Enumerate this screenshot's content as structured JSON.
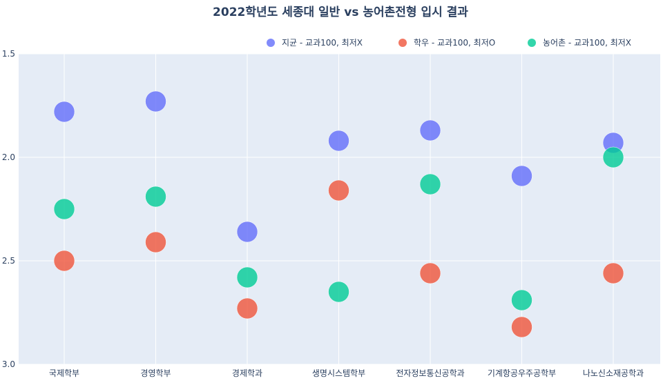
{
  "chart_data": {
    "type": "scatter",
    "title": "2022학년도 세종대 일반 vs 농어촌전형 입시 결과",
    "xlabel": "",
    "ylabel": "",
    "categories": [
      "국제학부",
      "경영학부",
      "경제학과",
      "생명시스템학부",
      "전자정보통신공학과",
      "기계항공우주공학부",
      "나노신소재공학과"
    ],
    "ylim": [
      3.0,
      1.5
    ],
    "y_reversed": true,
    "yticks": [
      "1.5",
      "2.0",
      "2.5",
      "3.0"
    ],
    "ytick_values": [
      1.5,
      2.0,
      2.5,
      3.0
    ],
    "grid": true,
    "legend_position": "top-right",
    "series": [
      {
        "name": "지균 - 교과100, 최저X",
        "color": "#636efa",
        "values": [
          1.78,
          1.73,
          2.36,
          1.92,
          1.87,
          2.09,
          1.93
        ]
      },
      {
        "name": "학우 - 교과100, 최저O",
        "color": "#ef553b",
        "values": [
          2.5,
          2.41,
          2.73,
          2.16,
          2.56,
          2.82,
          2.56
        ]
      },
      {
        "name": "농어촌 - 교과100, 최저X",
        "color": "#00cc96",
        "values": [
          2.25,
          2.19,
          2.58,
          2.65,
          2.13,
          2.69,
          2.0
        ]
      }
    ]
  }
}
